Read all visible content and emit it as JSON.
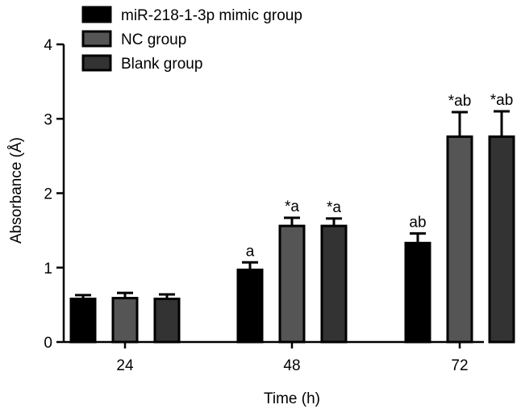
{
  "chart_data": {
    "type": "bar",
    "xlabel": "Time (h)",
    "ylabel": "Absorbance (Å)",
    "ylim": [
      0,
      4
    ],
    "yticks": [
      0,
      1,
      2,
      3,
      4
    ],
    "categories": [
      "24",
      "48",
      "72"
    ],
    "series": [
      {
        "name": "miR-218-1-3p mimic group",
        "color": "#000000",
        "values": [
          0.58,
          0.97,
          1.33
        ],
        "errors": [
          0.05,
          0.1,
          0.13
        ],
        "annotations": [
          "",
          "a",
          "ab"
        ]
      },
      {
        "name": "NC group",
        "color": "#555555",
        "values": [
          0.59,
          1.56,
          2.76
        ],
        "errors": [
          0.07,
          0.11,
          0.33
        ],
        "annotations": [
          "",
          "*a",
          "*ab"
        ]
      },
      {
        "name": "Blank group",
        "color": "#333333",
        "values": [
          0.58,
          1.56,
          2.76
        ],
        "errors": [
          0.06,
          0.1,
          0.34
        ],
        "annotations": [
          "",
          "*a",
          "*ab"
        ]
      }
    ],
    "legend": "top-left",
    "grid": false
  }
}
